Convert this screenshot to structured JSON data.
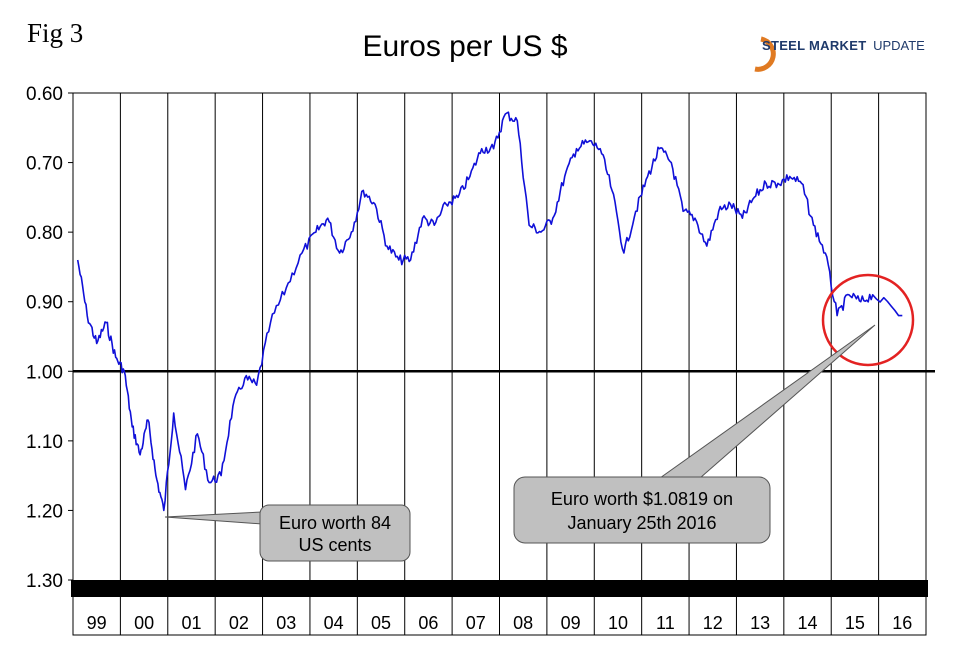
{
  "figure": {
    "label": "Fig 3"
  },
  "logo": {
    "word1": "STEEL",
    "word2": "MARKET",
    "word3": "UPDATE"
  },
  "colors": {
    "series": "#1010d8",
    "circle": "#e32222",
    "callout_fill": "#c0c0c0",
    "frame": "#000000"
  },
  "chart_data": {
    "type": "line",
    "title": "Euros per US $",
    "xlabel": "",
    "ylabel": "",
    "ylim": [
      0.6,
      1.3
    ],
    "y_inverted": true,
    "yticks": [
      "0.60",
      "0.70",
      "0.80",
      "0.90",
      "1.00",
      "1.10",
      "1.20",
      "1.30"
    ],
    "categories": [
      "99",
      "00",
      "01",
      "02",
      "03",
      "04",
      "05",
      "06",
      "07",
      "08",
      "09",
      "10",
      "11",
      "12",
      "13",
      "14",
      "15",
      "16"
    ],
    "grid": "vertical gridline at each year boundary",
    "reference_line": 1.0,
    "series": [
      {
        "points": [
          [
            "99",
            0.84
          ],
          [
            "99",
            0.92
          ],
          [
            "99",
            0.96
          ],
          [
            "99",
            0.93
          ],
          [
            "99",
            0.98
          ],
          [
            "00",
            1.0
          ],
          [
            "00",
            1.08
          ],
          [
            "00",
            1.12
          ],
          [
            "00",
            1.07
          ],
          [
            "00",
            1.15
          ],
          [
            "00",
            1.2
          ],
          [
            "01",
            1.06
          ],
          [
            "01",
            1.17
          ],
          [
            "01",
            1.09
          ],
          [
            "01",
            1.16
          ],
          [
            "02",
            1.15
          ],
          [
            "02",
            1.05
          ],
          [
            "02",
            1.01
          ],
          [
            "02",
            1.02
          ],
          [
            "03",
            0.93
          ],
          [
            "03",
            0.88
          ],
          [
            "03",
            0.83
          ],
          [
            "04",
            0.8
          ],
          [
            "04",
            0.78
          ],
          [
            "04",
            0.83
          ],
          [
            "04",
            0.8
          ],
          [
            "05",
            0.74
          ],
          [
            "05",
            0.76
          ],
          [
            "05",
            0.82
          ],
          [
            "05",
            0.84
          ],
          [
            "06",
            0.84
          ],
          [
            "06",
            0.78
          ],
          [
            "06",
            0.79
          ],
          [
            "06",
            0.76
          ],
          [
            "07",
            0.75
          ],
          [
            "07",
            0.72
          ],
          [
            "07",
            0.68
          ],
          [
            "07",
            0.68
          ],
          [
            "08",
            0.63
          ],
          [
            "08",
            0.64
          ],
          [
            "08",
            0.79
          ],
          [
            "08",
            0.8
          ],
          [
            "09",
            0.78
          ],
          [
            "09",
            0.72
          ],
          [
            "09",
            0.68
          ],
          [
            "09",
            0.67
          ],
          [
            "10",
            0.68
          ],
          [
            "10",
            0.74
          ],
          [
            "10",
            0.83
          ],
          [
            "10",
            0.77
          ],
          [
            "11",
            0.72
          ],
          [
            "11",
            0.68
          ],
          [
            "11",
            0.7
          ],
          [
            "11",
            0.77
          ],
          [
            "12",
            0.78
          ],
          [
            "12",
            0.82
          ],
          [
            "12",
            0.77
          ],
          [
            "12",
            0.76
          ],
          [
            "13",
            0.78
          ],
          [
            "13",
            0.75
          ],
          [
            "13",
            0.73
          ],
          [
            "13",
            0.73
          ],
          [
            "14",
            0.72
          ],
          [
            "14",
            0.73
          ],
          [
            "14",
            0.79
          ],
          [
            "14",
            0.83
          ],
          [
            "15",
            0.92
          ],
          [
            "15",
            0.89
          ],
          [
            "15",
            0.9
          ],
          [
            "15",
            0.89
          ],
          [
            "16",
            0.92
          ]
        ]
      }
    ],
    "annotations": [
      {
        "text_lines": [
          "Euro worth 84",
          "US cents"
        ]
      },
      {
        "text_lines": [
          "Euro worth $1.0819 on",
          "January 25th 2016"
        ]
      }
    ]
  }
}
